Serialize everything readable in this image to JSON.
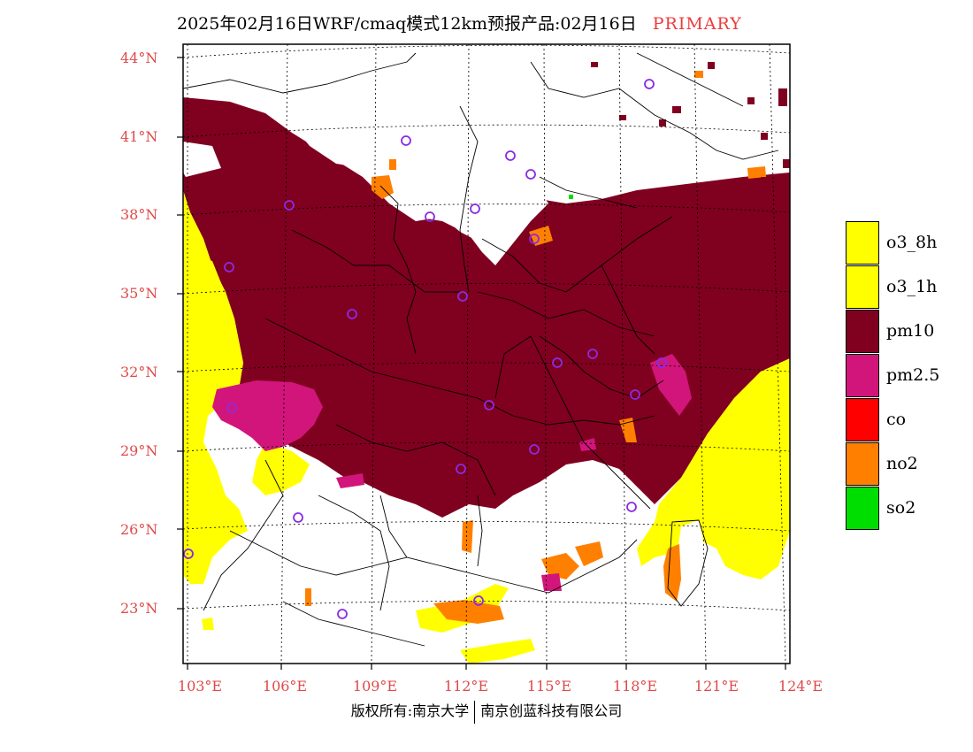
{
  "title": {
    "main": "2025年02月16日WRF/cmaq模式12km预报产品:02月16日",
    "tag": "PRIMARY"
  },
  "latitude_labels": [
    "44°N",
    "41°N",
    "38°N",
    "35°N",
    "32°N",
    "29°N",
    "26°N",
    "23°N"
  ],
  "longitude_labels": [
    "103°E",
    "106°E",
    "109°E",
    "112°E",
    "115°E",
    "118°E",
    "121°E",
    "124°E"
  ],
  "legend": [
    {
      "label": "o3_8h",
      "color": "#ffff00"
    },
    {
      "label": "o3_1h",
      "color": "#ffff00"
    },
    {
      "label": "pm10",
      "color": "#800020"
    },
    {
      "label": "pm2.5",
      "color": "#d2157a"
    },
    {
      "label": "co",
      "color": "#ff0000"
    },
    {
      "label": "no2",
      "color": "#ff8000"
    },
    {
      "label": "so2",
      "color": "#00dd00"
    }
  ],
  "footer": {
    "left": "版权所有:南京大学",
    "right": "南京创蓝科技有限公司"
  },
  "colors": {
    "axis_label": "#e04848",
    "station_marker": "#8a2be2"
  }
}
